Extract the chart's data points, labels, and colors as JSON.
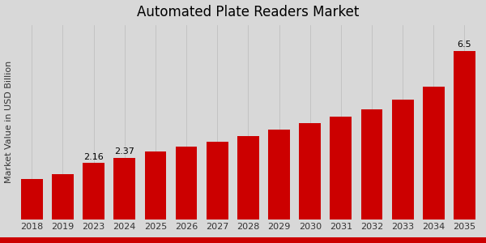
{
  "title": "Automated Plate Readers Market",
  "ylabel": "Market Value in USD Billion",
  "years": [
    2018,
    2019,
    2023,
    2024,
    2025,
    2026,
    2027,
    2028,
    2029,
    2030,
    2031,
    2032,
    2033,
    2034,
    2035
  ],
  "values": [
    1.55,
    1.75,
    2.16,
    2.37,
    2.6,
    2.8,
    3.0,
    3.2,
    3.45,
    3.7,
    3.95,
    4.25,
    4.6,
    5.1,
    6.5
  ],
  "bar_color": "#cc0000",
  "annotations": {
    "2023": "2.16",
    "2024": "2.37",
    "2035": "6.5"
  },
  "bg_color_light": "#e0e0e0",
  "bg_color_dark": "#b0b0b0",
  "title_fontsize": 12,
  "axis_fontsize": 8,
  "annot_fontsize": 8,
  "bar_width": 0.7,
  "bottom_strip_color": "#cc0000",
  "grid_color": "#ffffff",
  "ylim_max": 7.5
}
